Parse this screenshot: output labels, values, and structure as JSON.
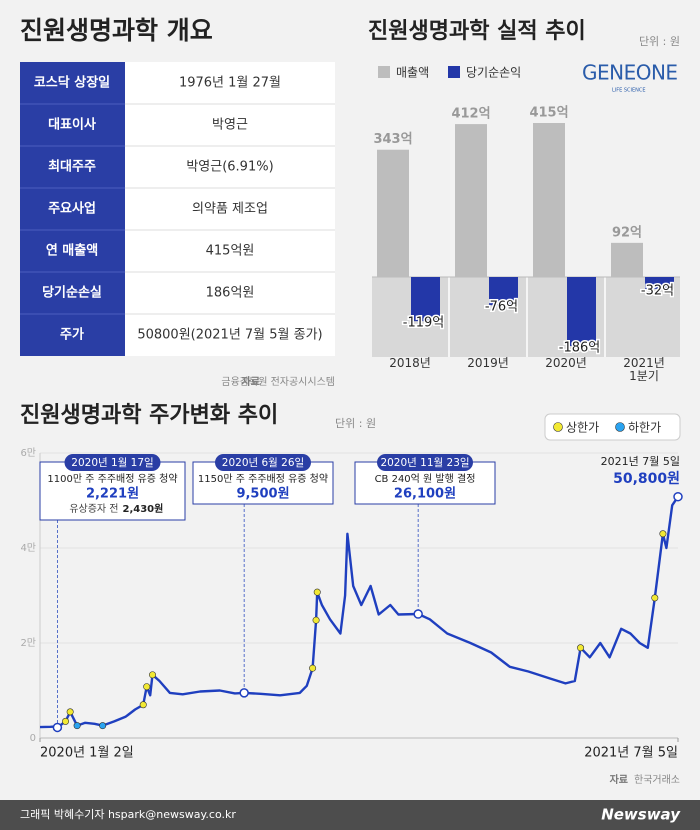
{
  "overview": {
    "title": "진원생명과학 개요",
    "rows": [
      [
        "코스닥 상장일",
        "1976년 1월 27월"
      ],
      [
        "대표이사",
        "박영근"
      ],
      [
        "최대주주",
        "박영근(6.91%)"
      ],
      [
        "주요사업",
        "의약품 제조업"
      ],
      [
        "연 매출액",
        "415억원"
      ],
      [
        "당기순손실",
        "186억원"
      ],
      [
        "주가",
        "50800원(2021년 7월 5월 종가)"
      ]
    ],
    "source": {
      "label": "자료",
      "text": "금융감독원 전자공시시스템"
    }
  },
  "logo": {
    "name": "GENEONE",
    "tagline": "LIFE SCIENCE"
  },
  "chart_data": [
    {
      "type": "bar",
      "title": "진원생명과학 실적 추이",
      "unit": "단위 : 원",
      "categories": [
        "2018년",
        "2019년",
        "2020년",
        "2021년 1분기"
      ],
      "series": [
        {
          "name": "매출액",
          "color": "#bdbdbd",
          "values": [
            343,
            412,
            415,
            92
          ],
          "value_labels": [
            "343억",
            "412억",
            "415억",
            "92억"
          ]
        },
        {
          "name": "당기순손익",
          "color": "#2337a8",
          "values": [
            -119,
            -76,
            -186,
            -32
          ],
          "value_labels": [
            "-119억",
            "-76억",
            "-186억",
            "-32억"
          ]
        }
      ]
    },
    {
      "type": "line",
      "title": "진원생명과학 주가변화 추이",
      "unit": "단위 : 원",
      "xlim": [
        "2020-01-02",
        "2021-07-05"
      ],
      "xticks": [
        {
          "value": "2020-01-02",
          "label": "2020년 1월 2일"
        },
        {
          "value": "2021-07-05",
          "label": "2021년 7월 5일"
        }
      ],
      "ylim": [
        0,
        60000
      ],
      "yticks": [
        0,
        {
          "value": 20000,
          "label": "2만"
        },
        {
          "value": 40000,
          "label": "4만"
        },
        {
          "value": 60000,
          "label": "6만"
        }
      ],
      "series": [
        {
          "name": "주가",
          "color": "#1f3fbf",
          "x": [
            "2020-01-02",
            "2020-01-11",
            "2020-01-16",
            "2020-01-17",
            "2020-01-24",
            "2020-01-28",
            "2020-02-03",
            "2020-02-10",
            "2020-02-18",
            "2020-02-25",
            "2020-03-06",
            "2020-03-16",
            "2020-03-24",
            "2020-03-31",
            "2020-04-03",
            "2020-04-06",
            "2020-04-08",
            "2020-04-14",
            "2020-04-23",
            "2020-05-04",
            "2020-05-19",
            "2020-06-05",
            "2020-06-18",
            "2020-06-26",
            "2020-07-10",
            "2020-07-27",
            "2020-08-13",
            "2020-08-19",
            "2020-08-24",
            "2020-08-27",
            "2020-08-28",
            "2020-09-01",
            "2020-09-08",
            "2020-09-17",
            "2020-09-21",
            "2020-09-23",
            "2020-09-28",
            "2020-10-05",
            "2020-10-13",
            "2020-10-20",
            "2020-10-30",
            "2020-11-06",
            "2020-11-23",
            "2020-12-03",
            "2020-12-18",
            "2021-01-07",
            "2021-01-25",
            "2021-02-10",
            "2021-02-26",
            "2021-03-17",
            "2021-03-30",
            "2021-04-07",
            "2021-04-12",
            "2021-04-20",
            "2021-04-29",
            "2021-05-07",
            "2021-05-17",
            "2021-05-25",
            "2021-06-02",
            "2021-06-09",
            "2021-06-15",
            "2021-06-22",
            "2021-06-25",
            "2021-06-30",
            "2021-07-05"
          ],
          "values": [
            2300,
            2350,
            2430,
            2221,
            3500,
            5500,
            2600,
            3200,
            3000,
            2600,
            3500,
            4500,
            6000,
            7000,
            10800,
            9000,
            13300,
            12000,
            9500,
            9200,
            9800,
            10000,
            9400,
            9500,
            9300,
            9000,
            9500,
            11000,
            14700,
            24800,
            30700,
            28000,
            25000,
            22000,
            30000,
            43000,
            32000,
            28000,
            32000,
            26000,
            28000,
            26000,
            26100,
            25000,
            22000,
            20000,
            18000,
            15000,
            14000,
            12500,
            11500,
            12000,
            19000,
            17000,
            20000,
            17000,
            23000,
            22000,
            20000,
            19000,
            29500,
            43000,
            40000,
            49000,
            50800
          ]
        },
        {
          "name": "상한가",
          "color": "#f2e933",
          "x": [
            "2020-01-24",
            "2020-01-28",
            "2020-03-31",
            "2020-04-03",
            "2020-04-08",
            "2020-08-24",
            "2020-08-27",
            "2020-08-28",
            "2021-04-12",
            "2021-06-15",
            "2021-06-22"
          ],
          "values": [
            3500,
            5500,
            7000,
            10800,
            13300,
            14700,
            24800,
            30700,
            19000,
            29500,
            43000
          ]
        },
        {
          "name": "하한가",
          "color": "#2aa3f0",
          "x": [
            "2020-02-03",
            "2020-02-25"
          ],
          "values": [
            2600,
            2600
          ]
        }
      ],
      "annotations": [
        {
          "x": "2020-01-17",
          "y": 2221,
          "date": "2020년 1월 17일",
          "text": "1100만 주 주주배정 유증 청약",
          "value_label": "2,221원",
          "note": "유상증자 전",
          "note_value": "2,430원"
        },
        {
          "x": "2020-06-26",
          "y": 9500,
          "date": "2020년 6월 26일",
          "text": "1150만 주 주주배정 유증 청약",
          "value_label": "9,500원"
        },
        {
          "x": "2020-11-23",
          "y": 26100,
          "date": "2020년 11월 23일",
          "text": "CB 240억 원 발행 결정",
          "value_label": "26,100원"
        },
        {
          "x": "2021-07-05",
          "y": 50800,
          "date": "2021년 7월 5일",
          "value_label": "50,800원"
        }
      ],
      "source": {
        "label": "자료",
        "text": "한국거래소"
      }
    }
  ],
  "footer": {
    "credit": "그래픽 박혜수기자 hspark@newsway.co.kr",
    "brand": "Newsway"
  }
}
